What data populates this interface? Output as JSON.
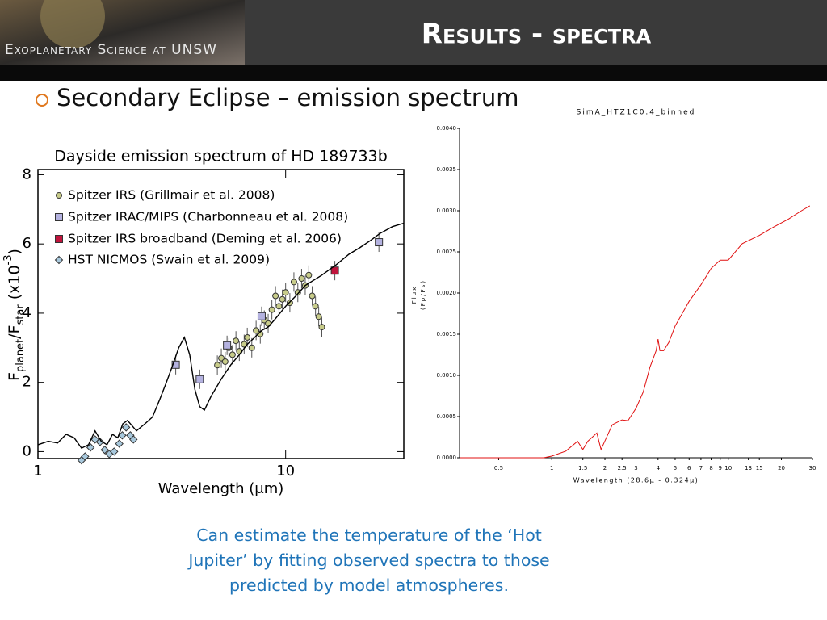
{
  "header": {
    "logo": "Exoplanetary Science at UNSW",
    "title": "Results - spectra"
  },
  "bullet": "Secondary Eclipse – emission spectrum",
  "caption": "Can estimate the temperature of the ‘Hot Jupiter’ by fitting observed spectra to those predicted by model atmospheres.",
  "chart_data": [
    {
      "type": "scatter",
      "title": "Dayside emission spectrum of HD 189733b",
      "x_label": "Wavelength (μm)",
      "y_label": [
        "F",
        "planet",
        "/F",
        "star",
        " (x10",
        "-3",
        ")"
      ],
      "xscale": "log",
      "xlim": [
        1,
        30
      ],
      "xticks": [
        1,
        10
      ],
      "ylim": [
        -0.2,
        8.15
      ],
      "yticks": [
        0,
        2,
        4,
        6,
        8
      ],
      "legend": "upper left",
      "series": [
        {
          "name": "Spitzer IRS (Grillmair et al. 2008)",
          "color": "#c8cc8a",
          "marker": "circle",
          "x": [
            5.3,
            5.5,
            5.7,
            5.9,
            6.1,
            6.3,
            6.5,
            6.8,
            7.0,
            7.3,
            7.6,
            7.9,
            8.2,
            8.5,
            8.8,
            9.1,
            9.4,
            9.7,
            10.0,
            10.4,
            10.8,
            11.2,
            11.6,
            12.0,
            12.4,
            12.8,
            13.2,
            13.6,
            14.0
          ],
          "values": [
            2.5,
            2.7,
            2.6,
            3.0,
            2.8,
            3.2,
            2.9,
            3.1,
            3.3,
            3.0,
            3.5,
            3.4,
            3.8,
            3.7,
            4.1,
            4.5,
            4.2,
            4.4,
            4.6,
            4.3,
            4.9,
            4.6,
            5.0,
            4.8,
            5.1,
            4.5,
            4.2,
            3.9,
            3.6
          ]
        },
        {
          "name": "Spitzer IRAC/MIPS (Charbonneau et al. 2008)",
          "color": "#b4b2e0",
          "marker": "square",
          "x": [
            3.6,
            4.5,
            5.8,
            8.0,
            23.8
          ],
          "values": [
            2.51,
            2.09,
            3.07,
            3.91,
            6.05
          ]
        },
        {
          "name": "Spitzer IRS broadband (Deming et al. 2006)",
          "color": "#c0143c",
          "marker": "square",
          "x": [
            15.8
          ],
          "values": [
            5.23
          ]
        },
        {
          "name": "HST NICMOS (Swain et al. 2009)",
          "color": "#a8c8dc",
          "marker": "diamond",
          "x": [
            1.5,
            1.55,
            1.63,
            1.7,
            1.78,
            1.86,
            1.94,
            2.03,
            2.13,
            2.19,
            2.27,
            2.36,
            2.43
          ],
          "values": [
            -0.25,
            -0.14,
            0.12,
            0.35,
            0.28,
            0.05,
            -0.07,
            0.0,
            0.23,
            0.47,
            0.7,
            0.47,
            0.35
          ]
        },
        {
          "type": "line",
          "color": "#000000",
          "x": [
            1.0,
            1.1,
            1.2,
            1.3,
            1.4,
            1.5,
            1.6,
            1.7,
            1.8,
            1.9,
            2.0,
            2.1,
            2.2,
            2.3,
            2.5,
            2.7,
            2.9,
            3.1,
            3.3,
            3.5,
            3.7,
            3.9,
            4.1,
            4.3,
            4.5,
            4.7,
            5.0,
            5.5,
            6.0,
            6.5,
            7.0,
            7.5,
            8.0,
            8.5,
            9.0,
            10,
            11,
            12,
            14,
            16,
            18,
            20,
            22,
            24,
            27,
            30
          ],
          "values": [
            0.2,
            0.3,
            0.25,
            0.5,
            0.4,
            0.1,
            0.2,
            0.6,
            0.3,
            0.2,
            0.5,
            0.4,
            0.8,
            0.9,
            0.6,
            0.8,
            1.0,
            1.5,
            2.0,
            2.5,
            3.0,
            3.3,
            2.8,
            1.8,
            1.3,
            1.2,
            1.6,
            2.1,
            2.5,
            2.8,
            3.1,
            3.3,
            3.5,
            3.6,
            3.8,
            4.2,
            4.5,
            4.8,
            5.1,
            5.4,
            5.7,
            5.9,
            6.1,
            6.3,
            6.5,
            6.6
          ]
        }
      ]
    },
    {
      "type": "line",
      "title": "SimA_HTZ1C0.4_binned",
      "x_label": "Wavelength (28.6μ - 0.324μ)",
      "y_label": [
        "Flux",
        "(Fp/Fs)"
      ],
      "xscale": "log",
      "xlim": [
        0.3,
        30
      ],
      "xticks": [
        0.5,
        1,
        1.5,
        2,
        2.5,
        3,
        4,
        5,
        6,
        7,
        8,
        9,
        10,
        13,
        15,
        20,
        30
      ],
      "ylim": [
        0,
        0.004
      ],
      "yticks": [
        {
          "value": 0,
          "label": "0.0000"
        },
        {
          "value": 0.0005,
          "label": "0.0005"
        },
        {
          "value": 0.001,
          "label": "0.0010"
        },
        {
          "value": 0.0015,
          "label": "0.0015"
        },
        {
          "value": 0.002,
          "label": "0.0020"
        },
        {
          "value": 0.0025,
          "label": "0.0025"
        },
        {
          "value": 0.003,
          "label": "0.0030"
        },
        {
          "value": 0.0035,
          "label": "0.0035"
        },
        {
          "value": 0.004,
          "label": "0.0040"
        }
      ],
      "series": [
        {
          "color": "#e01010",
          "x": [
            0.3,
            0.5,
            0.7,
            0.9,
            1.0,
            1.2,
            1.4,
            1.5,
            1.6,
            1.8,
            1.9,
            2.2,
            2.5,
            2.7,
            3.0,
            3.3,
            3.6,
            3.9,
            4.0,
            4.1,
            4.3,
            4.6,
            5,
            6,
            7,
            8,
            9,
            10,
            12,
            15,
            18,
            22,
            26,
            29
          ],
          "values": [
            0,
            0,
            0,
            0,
            2e-05,
            8e-05,
            0.0002,
            0.0001,
            0.0002,
            0.0003,
            0.0001,
            0.0004,
            0.00046,
            0.00045,
            0.0006,
            0.0008,
            0.0011,
            0.0013,
            0.00144,
            0.0013,
            0.0013,
            0.0014,
            0.0016,
            0.0019,
            0.0021,
            0.0023,
            0.0024,
            0.0024,
            0.0026,
            0.0027,
            0.0028,
            0.0029,
            0.003,
            0.00306
          ]
        }
      ]
    }
  ]
}
